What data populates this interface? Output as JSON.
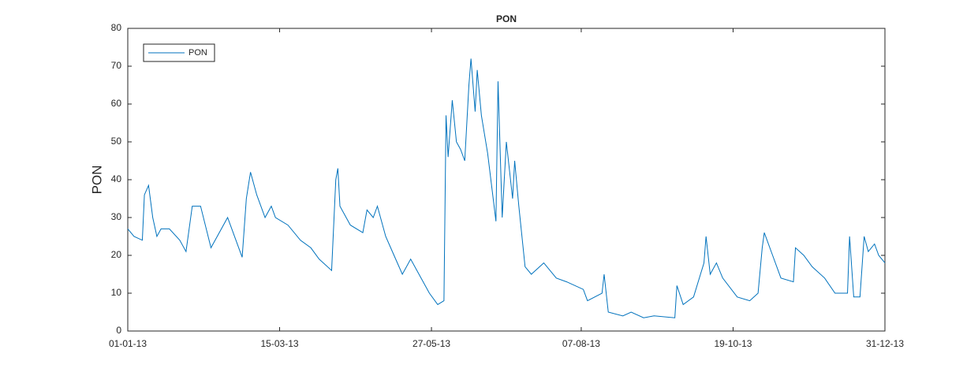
{
  "chart_data": {
    "type": "line",
    "title": "PON",
    "y_label": "PON",
    "x": [
      "2013-01-01",
      "2013-01-04",
      "2013-01-08",
      "2013-01-09",
      "2013-01-11",
      "2013-01-13",
      "2013-01-15",
      "2013-01-17",
      "2013-01-21",
      "2013-01-26",
      "2013-01-29",
      "2013-02-01",
      "2013-02-05",
      "2013-02-10",
      "2013-02-18",
      "2013-02-22",
      "2013-02-25",
      "2013-02-27",
      "2013-03-01",
      "2013-03-04",
      "2013-03-08",
      "2013-03-11",
      "2013-03-13",
      "2013-03-19",
      "2013-03-25",
      "2013-03-30",
      "2013-04-03",
      "2013-04-09",
      "2013-04-11",
      "2013-04-12",
      "2013-04-13",
      "2013-04-18",
      "2013-04-24",
      "2013-04-26",
      "2013-04-29",
      "2013-05-01",
      "2013-05-05",
      "2013-05-09",
      "2013-05-13",
      "2013-05-17",
      "2013-05-21",
      "2013-05-26",
      "2013-05-30",
      "2013-06-02",
      "2013-06-03",
      "2013-06-04",
      "2013-06-06",
      "2013-06-08",
      "2013-06-10",
      "2013-06-12",
      "2013-06-14",
      "2013-06-15",
      "2013-06-17",
      "2013-06-18",
      "2013-06-20",
      "2013-06-23",
      "2013-06-25",
      "2013-06-27",
      "2013-06-28",
      "2013-06-30",
      "2013-07-02",
      "2013-07-05",
      "2013-07-06",
      "2013-07-08",
      "2013-07-11",
      "2013-07-14",
      "2013-07-20",
      "2013-07-26",
      "2013-07-31",
      "2013-08-08",
      "2013-08-10",
      "2013-08-17",
      "2013-08-18",
      "2013-08-20",
      "2013-08-27",
      "2013-08-31",
      "2013-09-06",
      "2013-09-11",
      "2013-09-21",
      "2013-09-22",
      "2013-09-25",
      "2013-09-30",
      "2013-10-05",
      "2013-10-06",
      "2013-10-08",
      "2013-10-11",
      "2013-10-14",
      "2013-10-21",
      "2013-10-27",
      "2013-10-31",
      "2013-11-02",
      "2013-11-03",
      "2013-11-07",
      "2013-11-11",
      "2013-11-17",
      "2013-11-18",
      "2013-11-22",
      "2013-11-26",
      "2013-12-02",
      "2013-12-07",
      "2013-12-13",
      "2013-12-14",
      "2013-12-16",
      "2013-12-19",
      "2013-12-21",
      "2013-12-23",
      "2013-12-26",
      "2013-12-28",
      "2013-12-31"
    ],
    "series": [
      {
        "name": "PON",
        "color": "#0072bd",
        "values": [
          27,
          25,
          24,
          36,
          38.5,
          30,
          25,
          27,
          27,
          24,
          21,
          33,
          33,
          22,
          30,
          24,
          19.5,
          35,
          42,
          36,
          30,
          33,
          30,
          28,
          24,
          22,
          19,
          16,
          40,
          43,
          33,
          28,
          26,
          32,
          30,
          33,
          25,
          20,
          15,
          19,
          15,
          10,
          7,
          8,
          57,
          46,
          61,
          50,
          48,
          45,
          65,
          72,
          58,
          69,
          57,
          47,
          38,
          29,
          66,
          30,
          50,
          35,
          45,
          33,
          17,
          15,
          18,
          14,
          13,
          11,
          8,
          10,
          15,
          5,
          4,
          5,
          3.5,
          4,
          3.5,
          12,
          7,
          9,
          18,
          25,
          15,
          18,
          14,
          9,
          8,
          10,
          22,
          26,
          20,
          14,
          13,
          22,
          20,
          17,
          14,
          10,
          10,
          25,
          9,
          9,
          25,
          21,
          23,
          20,
          18
        ]
      }
    ],
    "xlim": [
      "2013-01-01",
      "2013-12-31"
    ],
    "xticks": [
      {
        "value": "2013-01-01",
        "label": "01-01-13"
      },
      {
        "value": "2013-03-15",
        "label": "15-03-13"
      },
      {
        "value": "2013-05-27",
        "label": "27-05-13"
      },
      {
        "value": "2013-08-07",
        "label": "07-08-13"
      },
      {
        "value": "2013-10-19",
        "label": "19-10-13"
      },
      {
        "value": "2013-12-31",
        "label": "31-12-13"
      }
    ],
    "ylim": [
      0,
      80
    ],
    "yticks": [
      0,
      10,
      20,
      30,
      40,
      50,
      60,
      70,
      80
    ],
    "legend": "upper left"
  }
}
